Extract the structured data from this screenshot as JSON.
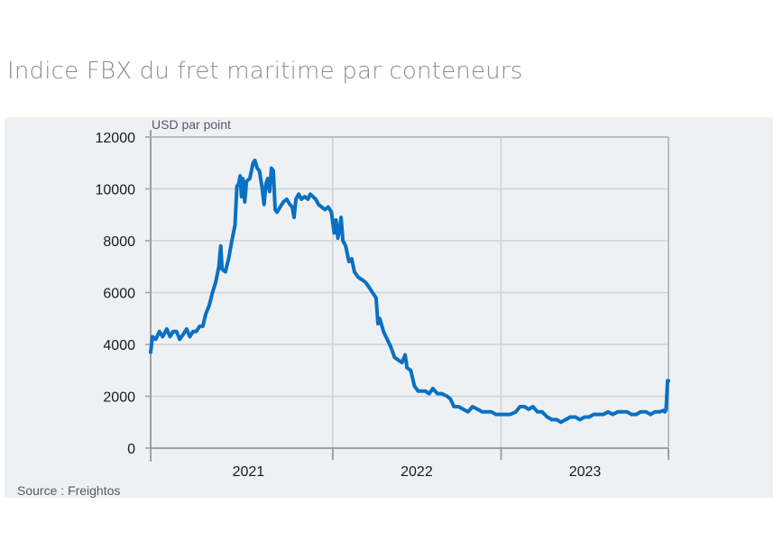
{
  "title": "Indice FBX du fret maritime par conteneurs",
  "source": "Source : Freightos",
  "chart_data": {
    "type": "line",
    "unit": "USD par point",
    "ylim": [
      0,
      12000
    ],
    "yticks": [
      "0",
      "2000",
      "4000",
      "6000",
      "8000",
      "10000",
      "12000"
    ],
    "xlim": [
      "2020-12-01",
      "2023-12-29"
    ],
    "xticks": [
      {
        "label": "2021",
        "date": "2021-07-01"
      },
      {
        "label": "2022",
        "date": "2022-07-01"
      },
      {
        "label": "2023",
        "date": "2023-07-01"
      }
    ],
    "year_boundaries": [
      "2021-12-31",
      "2022-12-31",
      "2023-12-31"
    ],
    "grid": true,
    "series": [
      {
        "color": "#0a70c2",
        "points": [
          [
            "2020-12-01",
            3700
          ],
          [
            "2020-12-05",
            4300
          ],
          [
            "2020-12-12",
            4200
          ],
          [
            "2020-12-20",
            4500
          ],
          [
            "2020-12-27",
            4300
          ],
          [
            "2021-01-05",
            4600
          ],
          [
            "2021-01-12",
            4300
          ],
          [
            "2021-01-19",
            4500
          ],
          [
            "2021-01-26",
            4500
          ],
          [
            "2021-02-02",
            4200
          ],
          [
            "2021-02-10",
            4400
          ],
          [
            "2021-02-17",
            4600
          ],
          [
            "2021-02-24",
            4300
          ],
          [
            "2021-03-03",
            4500
          ],
          [
            "2021-03-10",
            4500
          ],
          [
            "2021-03-17",
            4700
          ],
          [
            "2021-03-24",
            4700
          ],
          [
            "2021-03-31",
            5200
          ],
          [
            "2021-04-07",
            5500
          ],
          [
            "2021-04-14",
            6000
          ],
          [
            "2021-04-21",
            6400
          ],
          [
            "2021-04-28",
            7000
          ],
          [
            "2021-05-02",
            7800
          ],
          [
            "2021-05-05",
            6900
          ],
          [
            "2021-05-12",
            6800
          ],
          [
            "2021-05-19",
            7300
          ],
          [
            "2021-05-26",
            8000
          ],
          [
            "2021-06-02",
            8600
          ],
          [
            "2021-06-06",
            10100
          ],
          [
            "2021-06-10",
            10200
          ],
          [
            "2021-06-13",
            10500
          ],
          [
            "2021-06-16",
            9700
          ],
          [
            "2021-06-19",
            10400
          ],
          [
            "2021-06-23",
            9500
          ],
          [
            "2021-06-27",
            10300
          ],
          [
            "2021-07-04",
            10400
          ],
          [
            "2021-07-11",
            11000
          ],
          [
            "2021-07-15",
            11100
          ],
          [
            "2021-07-20",
            10800
          ],
          [
            "2021-07-25",
            10700
          ],
          [
            "2021-07-31",
            10000
          ],
          [
            "2021-08-04",
            9400
          ],
          [
            "2021-08-08",
            10200
          ],
          [
            "2021-08-12",
            10400
          ],
          [
            "2021-08-16",
            9900
          ],
          [
            "2021-08-20",
            10800
          ],
          [
            "2021-08-24",
            10700
          ],
          [
            "2021-08-28",
            9200
          ],
          [
            "2021-09-01",
            9100
          ],
          [
            "2021-09-08",
            9300
          ],
          [
            "2021-09-15",
            9500
          ],
          [
            "2021-09-22",
            9600
          ],
          [
            "2021-09-29",
            9400
          ],
          [
            "2021-10-04",
            9300
          ],
          [
            "2021-10-08",
            8900
          ],
          [
            "2021-10-12",
            9600
          ],
          [
            "2021-10-18",
            9800
          ],
          [
            "2021-10-24",
            9600
          ],
          [
            "2021-10-31",
            9700
          ],
          [
            "2021-11-07",
            9600
          ],
          [
            "2021-11-12",
            9800
          ],
          [
            "2021-11-18",
            9700
          ],
          [
            "2021-11-24",
            9600
          ],
          [
            "2021-11-30",
            9400
          ],
          [
            "2021-12-07",
            9300
          ],
          [
            "2021-12-14",
            9200
          ],
          [
            "2021-12-21",
            9300
          ],
          [
            "2021-12-28",
            9100
          ],
          [
            "2022-01-03",
            8300
          ],
          [
            "2022-01-07",
            8800
          ],
          [
            "2022-01-11",
            8100
          ],
          [
            "2022-01-15",
            8500
          ],
          [
            "2022-01-18",
            8900
          ],
          [
            "2022-01-22",
            8000
          ],
          [
            "2022-01-28",
            7800
          ],
          [
            "2022-02-04",
            7200
          ],
          [
            "2022-02-10",
            7300
          ],
          [
            "2022-02-16",
            6800
          ],
          [
            "2022-02-24",
            6600
          ],
          [
            "2022-03-04",
            6500
          ],
          [
            "2022-03-12",
            6400
          ],
          [
            "2022-03-20",
            6200
          ],
          [
            "2022-03-27",
            6000
          ],
          [
            "2022-04-04",
            5800
          ],
          [
            "2022-04-08",
            4800
          ],
          [
            "2022-04-12",
            5000
          ],
          [
            "2022-04-20",
            4500
          ],
          [
            "2022-04-28",
            4200
          ],
          [
            "2022-05-06",
            3900
          ],
          [
            "2022-05-14",
            3500
          ],
          [
            "2022-05-22",
            3400
          ],
          [
            "2022-05-30",
            3300
          ],
          [
            "2022-06-06",
            3600
          ],
          [
            "2022-06-10",
            3100
          ],
          [
            "2022-06-18",
            3000
          ],
          [
            "2022-06-26",
            2400
          ],
          [
            "2022-07-04",
            2200
          ],
          [
            "2022-07-12",
            2200
          ],
          [
            "2022-07-20",
            2200
          ],
          [
            "2022-07-28",
            2100
          ],
          [
            "2022-08-05",
            2300
          ],
          [
            "2022-08-15",
            2100
          ],
          [
            "2022-08-25",
            2100
          ],
          [
            "2022-09-05",
            2000
          ],
          [
            "2022-09-12",
            1900
          ],
          [
            "2022-09-20",
            1600
          ],
          [
            "2022-09-30",
            1600
          ],
          [
            "2022-10-10",
            1500
          ],
          [
            "2022-10-20",
            1400
          ],
          [
            "2022-10-30",
            1600
          ],
          [
            "2022-11-10",
            1500
          ],
          [
            "2022-11-20",
            1400
          ],
          [
            "2022-12-01",
            1400
          ],
          [
            "2022-12-10",
            1400
          ],
          [
            "2022-12-20",
            1300
          ],
          [
            "2022-12-31",
            1300
          ],
          [
            "2023-01-10",
            1300
          ],
          [
            "2023-01-20",
            1300
          ],
          [
            "2023-02-01",
            1400
          ],
          [
            "2023-02-10",
            1600
          ],
          [
            "2023-02-20",
            1600
          ],
          [
            "2023-03-01",
            1500
          ],
          [
            "2023-03-10",
            1600
          ],
          [
            "2023-03-20",
            1400
          ],
          [
            "2023-03-30",
            1400
          ],
          [
            "2023-04-10",
            1200
          ],
          [
            "2023-04-20",
            1100
          ],
          [
            "2023-05-01",
            1100
          ],
          [
            "2023-05-10",
            1000
          ],
          [
            "2023-05-20",
            1100
          ],
          [
            "2023-05-30",
            1200
          ],
          [
            "2023-06-10",
            1200
          ],
          [
            "2023-06-20",
            1100
          ],
          [
            "2023-06-30",
            1200
          ],
          [
            "2023-07-10",
            1200
          ],
          [
            "2023-07-20",
            1300
          ],
          [
            "2023-07-30",
            1300
          ],
          [
            "2023-08-10",
            1300
          ],
          [
            "2023-08-20",
            1400
          ],
          [
            "2023-08-30",
            1300
          ],
          [
            "2023-09-10",
            1400
          ],
          [
            "2023-09-20",
            1400
          ],
          [
            "2023-09-30",
            1400
          ],
          [
            "2023-10-10",
            1300
          ],
          [
            "2023-10-20",
            1300
          ],
          [
            "2023-10-30",
            1400
          ],
          [
            "2023-11-10",
            1400
          ],
          [
            "2023-11-20",
            1300
          ],
          [
            "2023-11-30",
            1400
          ],
          [
            "2023-12-10",
            1400
          ],
          [
            "2023-12-18",
            1450
          ],
          [
            "2023-12-21",
            1400
          ],
          [
            "2023-12-24",
            1500
          ],
          [
            "2023-12-27",
            2600
          ],
          [
            "2023-12-29",
            2600
          ]
        ]
      }
    ]
  }
}
